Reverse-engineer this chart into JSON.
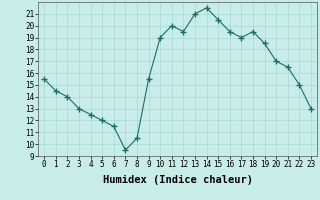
{
  "x": [
    0,
    1,
    2,
    3,
    4,
    5,
    6,
    7,
    8,
    9,
    10,
    11,
    12,
    13,
    14,
    15,
    16,
    17,
    18,
    19,
    20,
    21,
    22,
    23
  ],
  "y": [
    15.5,
    14.5,
    14.0,
    13.0,
    12.5,
    12.0,
    11.5,
    9.5,
    10.5,
    15.5,
    19.0,
    20.0,
    19.5,
    21.0,
    21.5,
    20.5,
    19.5,
    19.0,
    19.5,
    18.5,
    17.0,
    16.5,
    15.0,
    13.0
  ],
  "xlim": [
    -0.5,
    23.5
  ],
  "ylim": [
    9,
    22
  ],
  "yticks": [
    9,
    10,
    11,
    12,
    13,
    14,
    15,
    16,
    17,
    18,
    19,
    20,
    21
  ],
  "xticks": [
    0,
    1,
    2,
    3,
    4,
    5,
    6,
    7,
    8,
    9,
    10,
    11,
    12,
    13,
    14,
    15,
    16,
    17,
    18,
    19,
    20,
    21,
    22,
    23
  ],
  "xlabel": "Humidex (Indice chaleur)",
  "line_color": "#1a7060",
  "marker": "+",
  "marker_color": "#1a7060",
  "bg_color": "#c8ede8",
  "grid_color": "#a8d8d0",
  "tick_label_fontsize": 5.5,
  "xlabel_fontsize": 7.5,
  "title": ""
}
